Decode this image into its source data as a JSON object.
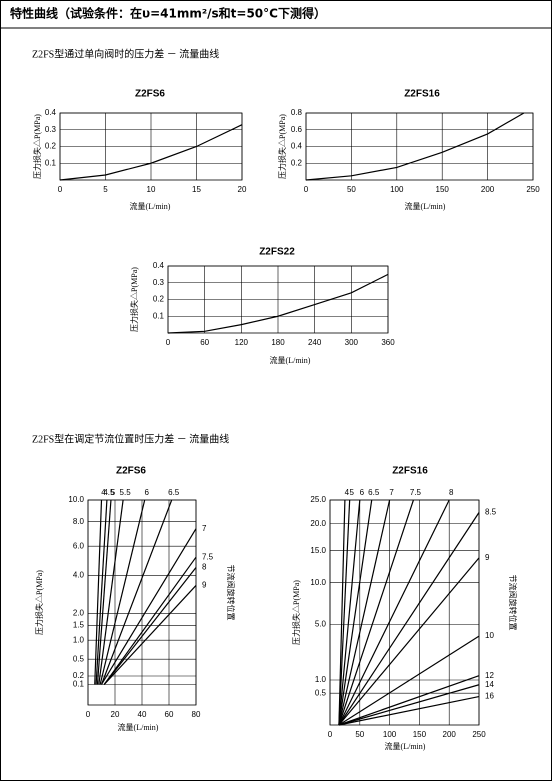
{
  "header": {
    "title": "特性曲线（试验条件：在υ=41mm²/s和t=50°C下测得）"
  },
  "sections": [
    {
      "title": "Z2FS型通过单向阀时的压力差 － 流量曲线"
    },
    {
      "title": "Z2FS型在调定节流位置时压力差 － 流量曲线"
    }
  ],
  "chart_data": [
    {
      "type": "line",
      "title": "Z2FS6",
      "x_label": "流量(L/min)",
      "y_label": "压力损失△P(MPa)",
      "color": "#000000",
      "grid": true,
      "xlim": [
        0,
        20
      ],
      "ylim": [
        0,
        0.4
      ],
      "xticks": [
        0,
        5,
        10,
        15,
        20
      ],
      "yticks": [
        0.1,
        0.2,
        0.3,
        0.4
      ],
      "x": [
        0,
        5,
        10,
        15,
        20
      ],
      "values": [
        0,
        0.03,
        0.1,
        0.2,
        0.33
      ]
    },
    {
      "type": "line",
      "title": "Z2FS16",
      "x_label": "流量(L/min)",
      "y_label": "压力损失△P(MPa)",
      "color": "#000000",
      "grid": true,
      "xlim": [
        0,
        250
      ],
      "ylim": [
        0,
        0.8
      ],
      "xticks": [
        0,
        50,
        100,
        150,
        200,
        250
      ],
      "yticks": [
        0.2,
        0.4,
        0.6,
        0.8
      ],
      "x": [
        0,
        50,
        100,
        150,
        200,
        240
      ],
      "values": [
        0,
        0.05,
        0.15,
        0.33,
        0.55,
        0.8
      ]
    },
    {
      "type": "line",
      "title": "Z2FS22",
      "x_label": "流量(L/min)",
      "y_label": "压力损失△P(MPa)",
      "color": "#000000",
      "grid": true,
      "xlim": [
        0,
        360
      ],
      "ylim": [
        0,
        0.4
      ],
      "xticks": [
        0,
        60,
        120,
        180,
        240,
        300,
        360
      ],
      "yticks": [
        0.1,
        0.2,
        0.3,
        0.4
      ],
      "x": [
        0,
        60,
        120,
        180,
        240,
        300,
        360
      ],
      "values": [
        0,
        0.01,
        0.05,
        0.1,
        0.17,
        0.24,
        0.35
      ]
    },
    {
      "type": "multiline",
      "title": "Z2FS6",
      "x_label": "流量(L/min)",
      "y_label": "压力损失△P(MPa)",
      "right_label": "节流阀旋转位置",
      "yscale": "sqrt",
      "grid": true,
      "xlim": [
        0,
        80
      ],
      "ylim": [
        0,
        10
      ],
      "xticks": [
        0,
        20,
        40,
        60,
        80
      ],
      "yticks": [
        0.1,
        0.2,
        {
          "value": 0.5,
          "label": "0.5"
        },
        {
          "value": 1,
          "label": "1.0"
        },
        1.5,
        {
          "value": 2,
          "label": "2.0"
        },
        {
          "value": 4,
          "label": "4.0"
        },
        {
          "value": 6,
          "label": "6.0"
        },
        {
          "value": 8,
          "label": "8.0"
        },
        {
          "value": 10,
          "label": "10.0"
        }
      ],
      "series": [
        {
          "name": "4",
          "color": "#000000",
          "x": [
            5,
            10
          ],
          "values": [
            0.1,
            10
          ]
        },
        {
          "name": "4.5",
          "color": "#000000",
          "x": [
            6,
            14
          ],
          "values": [
            0.1,
            10
          ]
        },
        {
          "name": "5",
          "color": "#000000",
          "x": [
            7,
            17
          ],
          "values": [
            0.1,
            10
          ]
        },
        {
          "name": "5.5",
          "color": "#000000",
          "x": [
            8,
            26
          ],
          "values": [
            0.1,
            10
          ]
        },
        {
          "name": "6",
          "color": "#000000",
          "x": [
            9,
            42
          ],
          "values": [
            0.1,
            10
          ]
        },
        {
          "name": "6.5",
          "color": "#000000",
          "x": [
            10,
            62
          ],
          "values": [
            0.1,
            10
          ]
        },
        {
          "name": "7",
          "color": "#000000",
          "x": [
            10,
            80
          ],
          "values": [
            0.1,
            7.4
          ]
        },
        {
          "name": "7.5",
          "color": "#000000",
          "x": [
            12,
            80
          ],
          "values": [
            0.1,
            5.2
          ]
        },
        {
          "name": "8",
          "color": "#000000",
          "x": [
            12,
            80
          ],
          "values": [
            0.1,
            4.5
          ]
        },
        {
          "name": "9",
          "color": "#000000",
          "x": [
            12,
            80
          ],
          "values": [
            0.1,
            3.4
          ]
        }
      ]
    },
    {
      "type": "multiline",
      "title": "Z2FS16",
      "x_label": "流量(L/min)",
      "y_label": "压力损失△P(MPa)",
      "right_label": "节流阀旋转位置",
      "yscale": "sqrt",
      "grid": true,
      "xlim": [
        0,
        250
      ],
      "ylim": [
        0,
        25
      ],
      "xticks": [
        0,
        50,
        100,
        150,
        200,
        250
      ],
      "yticks": [
        {
          "value": 0.5,
          "label": "0.5"
        },
        {
          "value": 1,
          "label": "1.0"
        },
        {
          "value": 5,
          "label": "5.0"
        },
        {
          "value": 10,
          "label": "10.0"
        },
        {
          "value": 15,
          "label": "15.0"
        },
        {
          "value": 20,
          "label": "20.0"
        },
        {
          "value": 25,
          "label": "25.0"
        }
      ],
      "series": [
        {
          "name": "4",
          "color": "#000000",
          "x": [
            15,
            25
          ],
          "values": [
            0,
            25
          ]
        },
        {
          "name": "5",
          "color": "#000000",
          "x": [
            15,
            33
          ],
          "values": [
            0,
            25
          ]
        },
        {
          "name": "6",
          "color": "#000000",
          "x": [
            15,
            50
          ],
          "values": [
            0,
            25
          ]
        },
        {
          "name": "6.5",
          "color": "#000000",
          "x": [
            15,
            70
          ],
          "values": [
            0,
            25
          ]
        },
        {
          "name": "7",
          "color": "#000000",
          "x": [
            15,
            100
          ],
          "values": [
            0,
            25
          ]
        },
        {
          "name": "7.5",
          "color": "#000000",
          "x": [
            15,
            140
          ],
          "values": [
            0,
            25
          ]
        },
        {
          "name": "8",
          "color": "#000000",
          "x": [
            15,
            200
          ],
          "values": [
            0,
            25
          ]
        },
        {
          "name": "8.5",
          "color": "#000000",
          "x": [
            15,
            250
          ],
          "values": [
            0,
            22.3
          ]
        },
        {
          "name": "9",
          "color": "#000000",
          "x": [
            15,
            250
          ],
          "values": [
            0,
            13.8
          ]
        },
        {
          "name": "10",
          "color": "#000000",
          "x": [
            15,
            250
          ],
          "values": [
            0,
            3.9
          ]
        },
        {
          "name": "12",
          "color": "#000000",
          "x": [
            15,
            250
          ],
          "values": [
            0,
            1.2
          ]
        },
        {
          "name": "14",
          "color": "#000000",
          "x": [
            15,
            250
          ],
          "values": [
            0,
            0.8
          ]
        },
        {
          "name": "16",
          "color": "#000000",
          "x": [
            15,
            250
          ],
          "values": [
            0,
            0.4
          ]
        }
      ]
    }
  ]
}
